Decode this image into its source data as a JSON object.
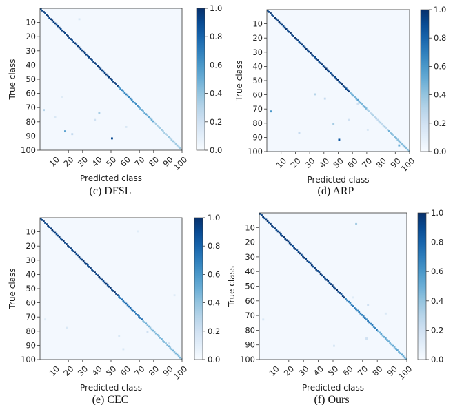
{
  "chart_data": [
    {
      "type": "heatmap",
      "caption": "(c) DFSL",
      "xlabel": "Predicted class",
      "ylabel": "True class",
      "xticks": [
        "10",
        "20",
        "30",
        "40",
        "50",
        "60",
        "70",
        "80",
        "90",
        "100"
      ],
      "yticks": [
        "10",
        "20",
        "30",
        "40",
        "50",
        "60",
        "70",
        "80",
        "90",
        "100"
      ],
      "xlim": [
        0,
        100
      ],
      "ylim": [
        0,
        100
      ],
      "colorbar": {
        "min": 0.0,
        "max": 1.0,
        "ticks": [
          "0.0",
          "0.2",
          "0.4",
          "0.6",
          "0.8",
          "1.0"
        ]
      },
      "diagonal": [
        {
          "start": 0,
          "end": 55,
          "value": 0.95
        },
        {
          "start": 55,
          "end": 70,
          "value": 0.65
        },
        {
          "start": 70,
          "end": 80,
          "value": 0.5
        },
        {
          "start": 80,
          "end": 100,
          "value": 0.35
        }
      ],
      "off_diagonal": [
        {
          "true": 71,
          "pred": 2,
          "value": 0.3
        },
        {
          "true": 73,
          "pred": 41,
          "value": 0.35
        },
        {
          "true": 78,
          "pred": 38,
          "value": 0.2
        },
        {
          "true": 86,
          "pred": 17,
          "value": 0.55
        },
        {
          "true": 88,
          "pred": 22,
          "value": 0.25
        },
        {
          "true": 91,
          "pred": 50,
          "value": 0.9
        },
        {
          "true": 83,
          "pred": 60,
          "value": 0.15
        },
        {
          "true": 76,
          "pred": 10,
          "value": 0.15
        },
        {
          "true": 62,
          "pred": 15,
          "value": 0.12
        },
        {
          "true": 7,
          "pred": 27,
          "value": 0.15
        }
      ]
    },
    {
      "type": "heatmap",
      "caption": "(d) ARP",
      "xlabel": "Predicted class",
      "ylabel": "True class",
      "xticks": [
        "10",
        "20",
        "30",
        "40",
        "50",
        "60",
        "70",
        "80",
        "90",
        "100"
      ],
      "yticks": [
        "10",
        "20",
        "30",
        "40",
        "50",
        "60",
        "70",
        "80",
        "90",
        "100"
      ],
      "xlim": [
        0,
        100
      ],
      "ylim": [
        0,
        100
      ],
      "colorbar": {
        "min": 0.0,
        "max": 1.0,
        "ticks": [
          "0.0",
          "0.2",
          "0.4",
          "0.6",
          "0.8",
          "1.0"
        ]
      },
      "diagonal": [
        {
          "start": 0,
          "end": 58,
          "value": 0.95
        },
        {
          "start": 58,
          "end": 70,
          "value": 0.5
        },
        {
          "start": 70,
          "end": 85,
          "value": 0.3
        },
        {
          "start": 85,
          "end": 100,
          "value": 0.45
        }
      ],
      "off_diagonal": [
        {
          "true": 71,
          "pred": 2,
          "value": 0.6
        },
        {
          "true": 59,
          "pred": 33,
          "value": 0.3
        },
        {
          "true": 62,
          "pred": 40,
          "value": 0.25
        },
        {
          "true": 80,
          "pred": 46,
          "value": 0.35
        },
        {
          "true": 86,
          "pred": 22,
          "value": 0.25
        },
        {
          "true": 91,
          "pred": 50,
          "value": 0.85
        },
        {
          "true": 95,
          "pred": 92,
          "value": 0.5
        },
        {
          "true": 77,
          "pred": 57,
          "value": 0.2
        },
        {
          "true": 84,
          "pred": 70,
          "value": 0.15
        },
        {
          "true": 66,
          "pred": 63,
          "value": 0.2
        }
      ]
    },
    {
      "type": "heatmap",
      "caption": "(e) CEC",
      "xlabel": "Predicted class",
      "ylabel": "True class",
      "xticks": [
        "10",
        "20",
        "30",
        "40",
        "50",
        "60",
        "70",
        "80",
        "90",
        "100"
      ],
      "yticks": [
        "10",
        "20",
        "30",
        "40",
        "50",
        "60",
        "70",
        "80",
        "90",
        "100"
      ],
      "xlim": [
        0,
        100
      ],
      "ylim": [
        0,
        100
      ],
      "colorbar": {
        "min": 0.0,
        "max": 1.0,
        "ticks": [
          "0.0",
          "0.2",
          "0.4",
          "0.6",
          "0.8",
          "1.0"
        ]
      },
      "diagonal": [
        {
          "start": 0,
          "end": 55,
          "value": 0.95
        },
        {
          "start": 55,
          "end": 72,
          "value": 0.75
        },
        {
          "start": 72,
          "end": 100,
          "value": 0.45
        }
      ],
      "off_diagonal": [
        {
          "true": 9,
          "pred": 68,
          "value": 0.12
        },
        {
          "true": 71,
          "pred": 3,
          "value": 0.12
        },
        {
          "true": 77,
          "pred": 18,
          "value": 0.15
        },
        {
          "true": 83,
          "pred": 55,
          "value": 0.15
        },
        {
          "true": 88,
          "pred": 90,
          "value": 0.2
        },
        {
          "true": 92,
          "pred": 58,
          "value": 0.15
        },
        {
          "true": 54,
          "pred": 94,
          "value": 0.12
        },
        {
          "true": 80,
          "pred": 75,
          "value": 0.2
        }
      ]
    },
    {
      "type": "heatmap",
      "caption": "(f) Ours",
      "xlabel": "Predicted class",
      "ylabel": "True class",
      "xticks": [
        "10",
        "20",
        "30",
        "40",
        "50",
        "60",
        "70",
        "80",
        "90",
        "100"
      ],
      "yticks": [
        "10",
        "20",
        "30",
        "40",
        "50",
        "60",
        "70",
        "80",
        "90",
        "100"
      ],
      "xlim": [
        0,
        100
      ],
      "ylim": [
        0,
        100
      ],
      "colorbar": {
        "min": 0.0,
        "max": 1.0,
        "ticks": [
          "0.0",
          "0.2",
          "0.4",
          "0.6",
          "0.8",
          "1.0"
        ]
      },
      "diagonal": [
        {
          "start": 0,
          "end": 58,
          "value": 0.95
        },
        {
          "start": 58,
          "end": 80,
          "value": 0.7
        },
        {
          "start": 80,
          "end": 100,
          "value": 0.5
        }
      ],
      "off_diagonal": [
        {
          "true": 7,
          "pred": 65,
          "value": 0.35
        },
        {
          "true": 72,
          "pred": 2,
          "value": 0.15
        },
        {
          "true": 62,
          "pred": 73,
          "value": 0.2
        },
        {
          "true": 85,
          "pred": 72,
          "value": 0.2
        },
        {
          "true": 90,
          "pred": 50,
          "value": 0.15
        },
        {
          "true": 68,
          "pred": 85,
          "value": 0.15
        },
        {
          "true": 57,
          "pred": 63,
          "value": 0.12
        }
      ]
    }
  ]
}
